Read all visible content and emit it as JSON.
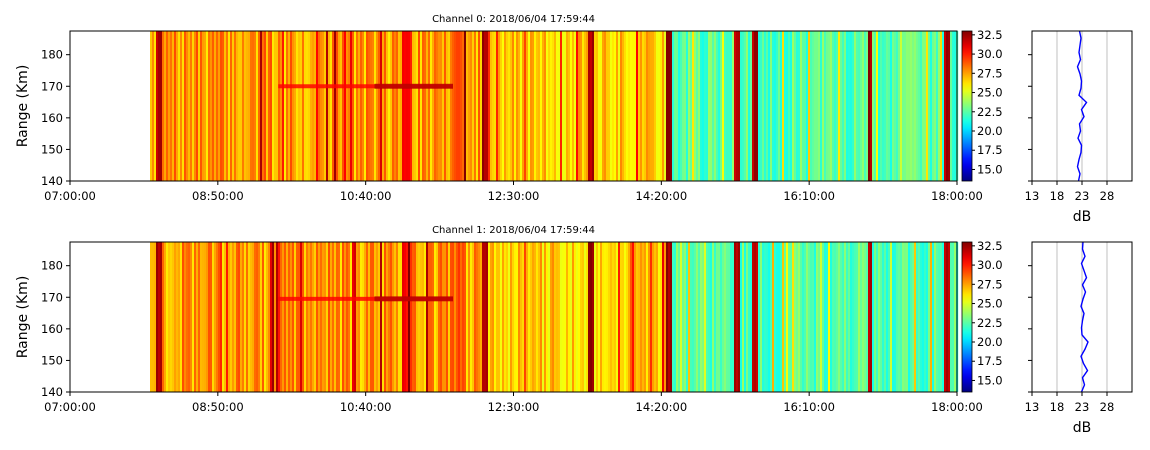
{
  "chart_data": [
    {
      "type": "heatmap",
      "title": "Channel 0: 2018/06/04 17:59:44",
      "ylabel": "Range (Km)",
      "xlabel": "",
      "x_range": [
        "07:00:00",
        "18:00:00"
      ],
      "ylim": [
        140,
        187.5
      ],
      "x_tick_labels": [
        "07:00:00",
        "08:50:00",
        "10:40:00",
        "12:30:00",
        "14:20:00",
        "16:10:00",
        "18:00:00"
      ],
      "y_ticks": [
        140,
        150,
        160,
        170,
        180
      ],
      "data_start": "08:00:00",
      "colorbar": {
        "colormap": "jet",
        "range": [
          13.5,
          33.0
        ],
        "tick_labels": [
          "15.0",
          "17.5",
          "20.0",
          "22.5",
          "25.0",
          "27.5",
          "30.0",
          "32.5"
        ]
      },
      "feature_band": {
        "range_km": 170,
        "from": "09:35:00",
        "to": "11:45:00"
      },
      "profile": {
        "xlabel": "dB",
        "xlim": [
          13,
          33
        ],
        "x_ticks": [
          13,
          18,
          23,
          28
        ],
        "grid": true,
        "series": {
          "values": [
            22.3,
            22.6,
            22.1,
            22.4,
            22.8,
            22.9,
            22.2,
            22.7,
            22.5,
            23.4,
            22.9,
            23.9,
            22.4,
            22.8,
            22.9,
            22.6,
            22.1,
            22.7,
            22.4,
            22.6,
            22.8,
            22.5
          ]
        }
      }
    },
    {
      "type": "heatmap",
      "title": "Channel 1: 2018/06/04 17:59:44",
      "ylabel": "Range (Km)",
      "xlabel": "",
      "x_range": [
        "07:00:00",
        "18:00:00"
      ],
      "ylim": [
        140,
        187.5
      ],
      "x_tick_labels": [
        "07:00:00",
        "08:50:00",
        "10:40:00",
        "12:30:00",
        "14:20:00",
        "16:10:00",
        "18:00:00"
      ],
      "y_ticks": [
        140,
        150,
        160,
        170,
        180
      ],
      "data_start": "08:00:00",
      "colorbar": {
        "colormap": "jet",
        "range": [
          13.5,
          33.0
        ],
        "tick_labels": [
          "15.0",
          "17.5",
          "20.0",
          "22.5",
          "25.0",
          "27.5",
          "30.0",
          "32.5"
        ]
      },
      "feature_band": {
        "range_km": 169.5,
        "from": "09:35:00",
        "to": "11:45:00"
      },
      "profile": {
        "xlabel": "dB",
        "xlim": [
          13,
          33
        ],
        "x_ticks": [
          13,
          18,
          23,
          28
        ],
        "grid": true,
        "series": {
          "values": [
            22.9,
            23.5,
            23.1,
            24.1,
            23.3,
            22.8,
            23.6,
            24.2,
            23.0,
            22.9,
            23.1,
            23.4,
            22.8,
            23.2,
            23.7,
            23.1,
            23.9,
            23.4,
            22.9,
            23.6,
            23.1,
            23.2
          ]
        }
      }
    }
  ]
}
